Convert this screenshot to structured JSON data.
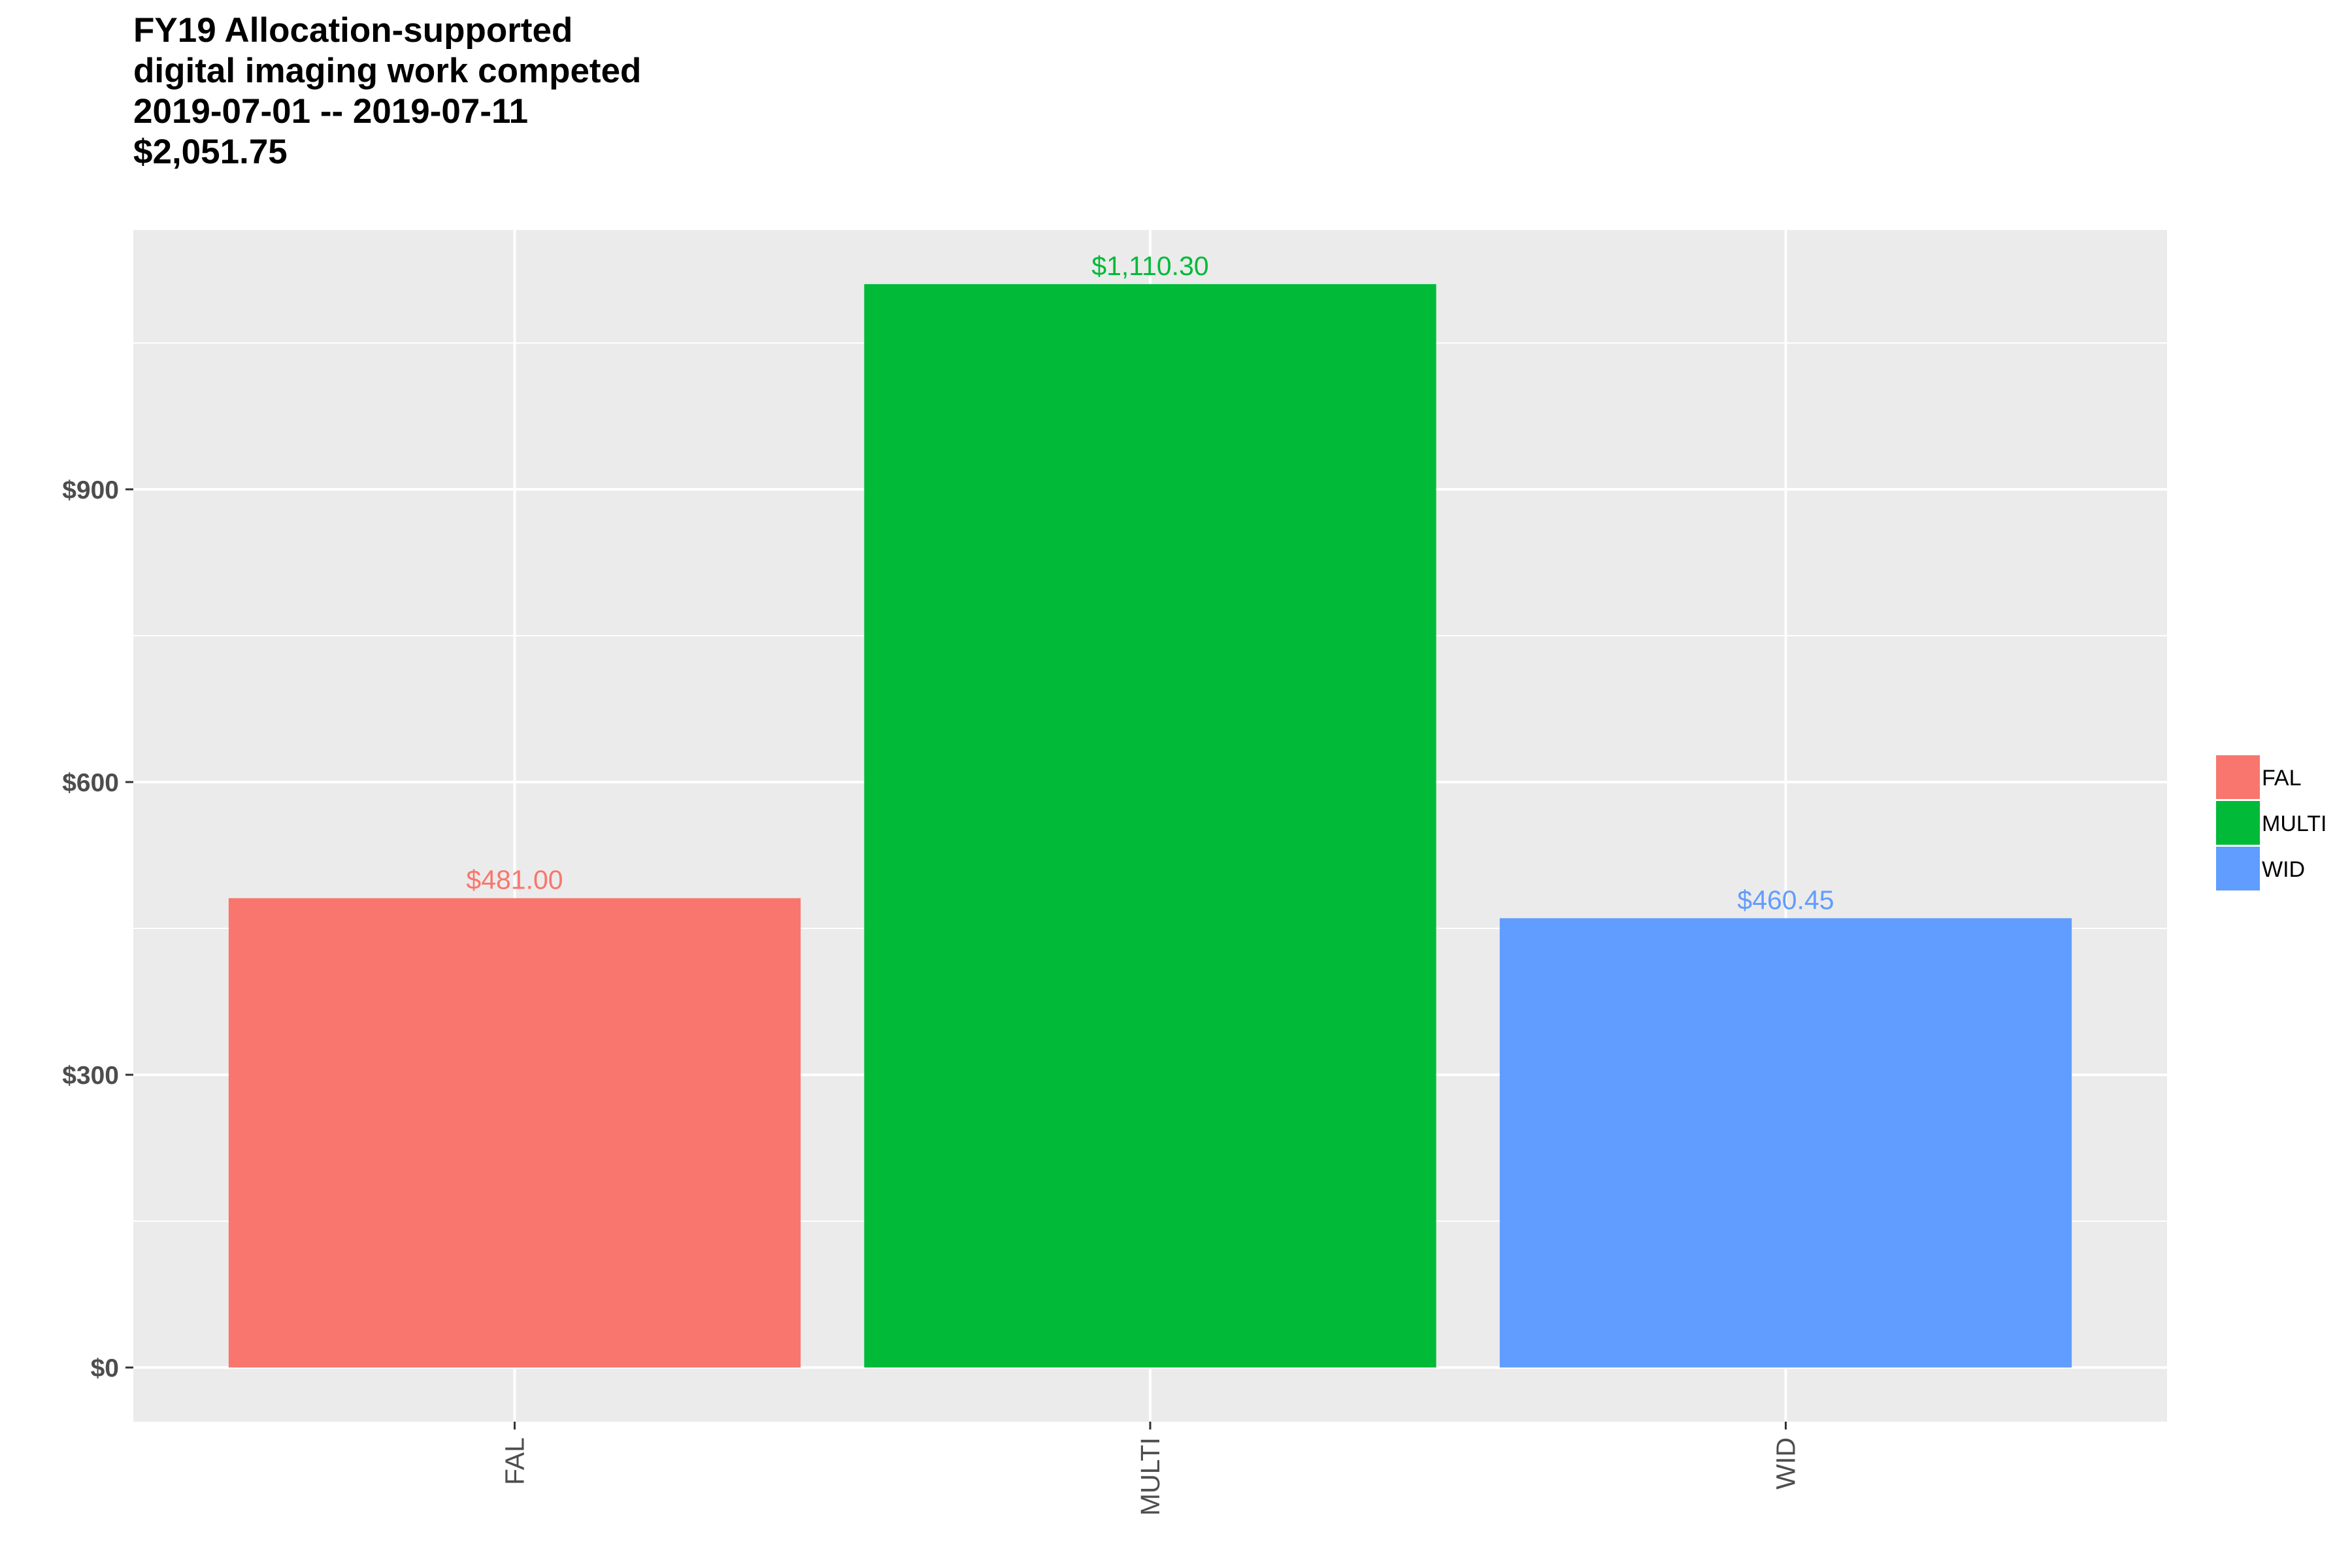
{
  "chart_data": {
    "type": "bar",
    "title_lines": [
      "FY19 Allocation-supported",
      "digital imaging work competed",
      "2019-07-01 -- 2019-07-11",
      "$2,051.75"
    ],
    "categories": [
      "FAL",
      "MULTI",
      "WID"
    ],
    "values": [
      481.0,
      1110.3,
      460.45
    ],
    "data_labels": [
      "$481.00",
      "$1,110.30",
      "$460.45"
    ],
    "colors": [
      "#F8766D",
      "#00BA38",
      "#619CFF"
    ],
    "xlabel": "",
    "ylabel": "",
    "ylim": [
      -55.5,
      1165.8
    ],
    "y_ticks": [
      0,
      300,
      600,
      900
    ],
    "y_tick_labels": [
      "$0",
      "$300",
      "$600",
      "$900"
    ],
    "grid": true,
    "panel_background": "#EBEBEB",
    "gridline_color": "#FFFFFF",
    "legend": {
      "position": "right",
      "entries": [
        "FAL",
        "MULTI",
        "WID"
      ]
    }
  }
}
